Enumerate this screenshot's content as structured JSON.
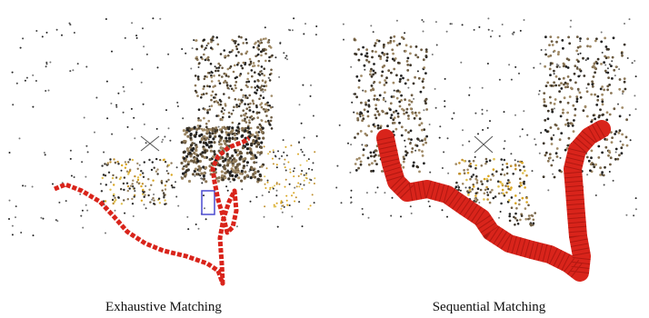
{
  "figure": {
    "panels": [
      {
        "caption": "Exhaustive Matching"
      },
      {
        "caption": "Sequential Matching"
      }
    ]
  }
}
